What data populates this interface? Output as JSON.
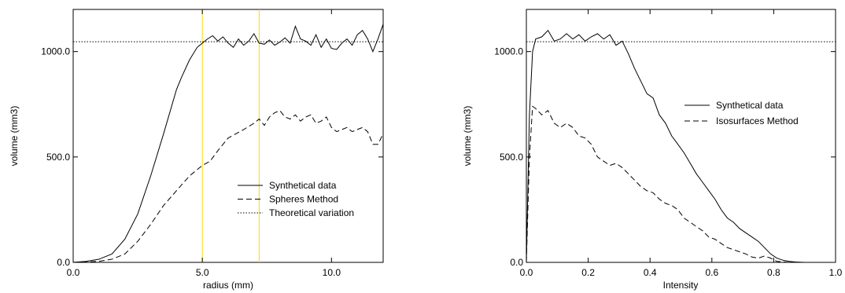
{
  "chart_data": [
    {
      "type": "line",
      "xlabel": "radius (mm)",
      "ylabel": "volume (mm3)",
      "xlim": [
        0,
        12
      ],
      "ylim": [
        0,
        1200
      ],
      "xticks": [
        0,
        5,
        10
      ],
      "xtick_labels": [
        "0.0",
        "5.0",
        "10.0"
      ],
      "yticks": [
        0,
        500,
        1000
      ],
      "ytick_labels": [
        "0.0",
        "500.0",
        "1000.0"
      ],
      "grid": false,
      "legend_position": "lower-right",
      "vlines": [
        {
          "x": 5.0,
          "color": "#ffd800"
        },
        {
          "x": 7.2,
          "color": "#ffd800"
        }
      ],
      "series": [
        {
          "name": "Synthetical data",
          "style": "solid",
          "x": [
            0,
            0.5,
            1.0,
            1.5,
            2.0,
            2.5,
            3.0,
            3.5,
            4.0,
            4.2,
            4.5,
            4.8,
            5.0,
            5.2,
            5.4,
            5.6,
            5.8,
            6.0,
            6.2,
            6.4,
            6.6,
            6.8,
            7.0,
            7.2,
            7.4,
            7.6,
            7.8,
            8.0,
            8.2,
            8.4,
            8.6,
            8.8,
            9.0,
            9.2,
            9.4,
            9.6,
            9.8,
            10.0,
            10.2,
            10.4,
            10.6,
            10.8,
            11.0,
            11.2,
            11.4,
            11.6,
            11.8,
            12.0
          ],
          "y": [
            0,
            5,
            15,
            40,
            110,
            230,
            410,
            610,
            820,
            880,
            960,
            1020,
            1040,
            1060,
            1075,
            1050,
            1070,
            1040,
            1020,
            1060,
            1030,
            1050,
            1085,
            1040,
            1035,
            1055,
            1030,
            1045,
            1065,
            1040,
            1120,
            1060,
            1050,
            1030,
            1080,
            1020,
            1060,
            1015,
            1010,
            1040,
            1060,
            1030,
            1080,
            1100,
            1060,
            1000,
            1060,
            1130
          ]
        },
        {
          "name": "Spheres Method",
          "style": "dashed",
          "x": [
            0,
            0.5,
            1.0,
            1.5,
            2.0,
            2.5,
            3.0,
            3.5,
            4.0,
            4.5,
            5.0,
            5.3,
            5.6,
            6.0,
            6.3,
            6.6,
            7.0,
            7.2,
            7.4,
            7.6,
            7.8,
            8.0,
            8.2,
            8.4,
            8.6,
            8.8,
            9.0,
            9.2,
            9.4,
            9.6,
            9.8,
            10.0,
            10.2,
            10.4,
            10.6,
            10.8,
            11.0,
            11.2,
            11.4,
            11.6,
            11.8,
            12.0
          ],
          "y": [
            0,
            2,
            5,
            15,
            40,
            100,
            180,
            270,
            340,
            410,
            460,
            480,
            530,
            590,
            610,
            630,
            660,
            680,
            650,
            690,
            710,
            720,
            690,
            680,
            700,
            670,
            690,
            700,
            660,
            670,
            690,
            640,
            620,
            630,
            640,
            620,
            630,
            640,
            620,
            560,
            560,
            610
          ]
        },
        {
          "name": "Theoretical variation",
          "style": "dotted",
          "x": [
            0,
            12
          ],
          "y": [
            1047,
            1047
          ]
        }
      ]
    },
    {
      "type": "line",
      "xlabel": "Intensity",
      "ylabel": "volume (mm3)",
      "xlim": [
        0,
        1
      ],
      "ylim": [
        0,
        1200
      ],
      "xticks": [
        0,
        0.2,
        0.4,
        0.6,
        0.8,
        1.0
      ],
      "xtick_labels": [
        "0.0",
        "0.2",
        "0.4",
        "0.6",
        "0.8",
        "1.0"
      ],
      "yticks": [
        0,
        500,
        1000
      ],
      "ytick_labels": [
        "0.0",
        "500.0",
        "1000.0"
      ],
      "grid": false,
      "legend_position": "upper-right",
      "series": [
        {
          "name": "Synthetical data",
          "style": "solid",
          "x": [
            0,
            0.01,
            0.02,
            0.03,
            0.05,
            0.07,
            0.09,
            0.11,
            0.13,
            0.15,
            0.17,
            0.19,
            0.21,
            0.23,
            0.25,
            0.27,
            0.29,
            0.31,
            0.33,
            0.35,
            0.37,
            0.39,
            0.41,
            0.43,
            0.45,
            0.47,
            0.49,
            0.51,
            0.53,
            0.55,
            0.57,
            0.59,
            0.61,
            0.63,
            0.65,
            0.67,
            0.69,
            0.71,
            0.73,
            0.75,
            0.77,
            0.79,
            0.81,
            0.83,
            0.85,
            0.87,
            0.9,
            0.95,
            1.0
          ],
          "y": [
            0,
            700,
            1000,
            1060,
            1070,
            1100,
            1050,
            1060,
            1085,
            1060,
            1080,
            1050,
            1070,
            1085,
            1060,
            1080,
            1030,
            1050,
            990,
            920,
            860,
            800,
            780,
            700,
            660,
            600,
            560,
            520,
            470,
            420,
            380,
            340,
            300,
            250,
            210,
            190,
            160,
            140,
            120,
            100,
            70,
            40,
            20,
            10,
            5,
            2,
            0,
            0,
            0
          ]
        },
        {
          "name": "Isosurfaces Method",
          "style": "dashed",
          "x": [
            0,
            0.01,
            0.02,
            0.03,
            0.05,
            0.07,
            0.09,
            0.11,
            0.13,
            0.15,
            0.17,
            0.19,
            0.21,
            0.23,
            0.25,
            0.27,
            0.29,
            0.31,
            0.33,
            0.35,
            0.37,
            0.39,
            0.41,
            0.43,
            0.45,
            0.47,
            0.49,
            0.51,
            0.53,
            0.55,
            0.57,
            0.59,
            0.61,
            0.63,
            0.65,
            0.67,
            0.69,
            0.71,
            0.73,
            0.75,
            0.77,
            0.79,
            0.81,
            0.83,
            0.85,
            0.9,
            0.95,
            1.0
          ],
          "y": [
            0,
            500,
            740,
            730,
            700,
            720,
            660,
            640,
            660,
            640,
            600,
            590,
            560,
            500,
            480,
            460,
            470,
            450,
            420,
            390,
            360,
            340,
            330,
            300,
            280,
            270,
            250,
            210,
            190,
            170,
            150,
            120,
            110,
            90,
            70,
            60,
            50,
            40,
            25,
            20,
            30,
            20,
            5,
            2,
            0,
            0,
            0,
            0
          ]
        },
        {
          "name": "",
          "style": "dotted",
          "x": [
            0,
            1
          ],
          "y": [
            1047,
            1047
          ]
        }
      ]
    }
  ]
}
